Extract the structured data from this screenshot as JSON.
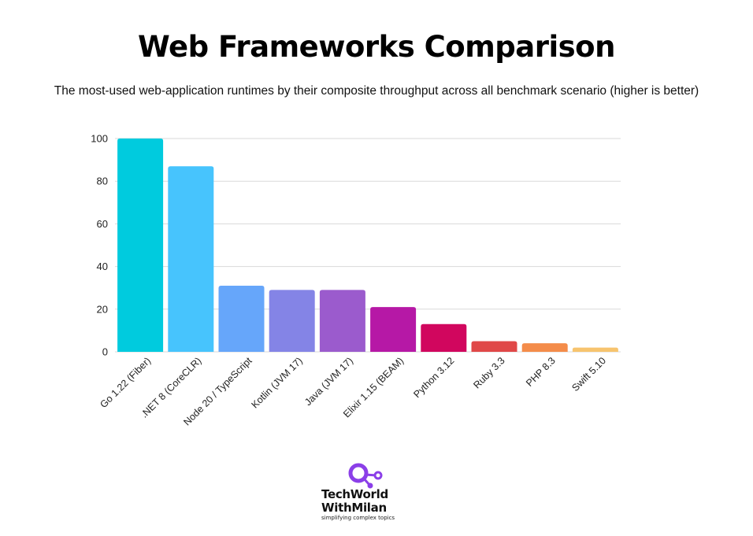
{
  "chart_data": {
    "type": "bar",
    "title": "Web Frameworks Comparison",
    "subtitle": "The most-used web-application runtimes by their composite throughput across all benchmark scenario (higher is better)",
    "xlabel": "",
    "ylabel": "",
    "ylim": [
      0,
      100
    ],
    "yticks": [
      0,
      20,
      40,
      60,
      80,
      100
    ],
    "grid": true,
    "categories": [
      "Go 1.22 (Fiber)",
      ".NET 8 (CoreCLR)",
      "Node 20 / TypeScript",
      "Kotlin (JVM 17)",
      "Java (JVM 17)",
      "Elixir 1.15 (BEAM)",
      "Python 3.12",
      "Ruby 3.3",
      "PHP 8.3",
      "Swift 5.10"
    ],
    "values": [
      100,
      87,
      31,
      29,
      29,
      21,
      13,
      5,
      4,
      2
    ],
    "colors": [
      "#00CBDE",
      "#47C4FD",
      "#66A6FA",
      "#8484E6",
      "#9B5BCD",
      "#B618A6",
      "#D1065E",
      "#E04848",
      "#F48C4A",
      "#F7C46E"
    ]
  },
  "logo": {
    "line1": "TechWorld",
    "line2": "WithMilan",
    "tagline": "simplifying complex topics",
    "accent_color": "#8B3FE8"
  }
}
